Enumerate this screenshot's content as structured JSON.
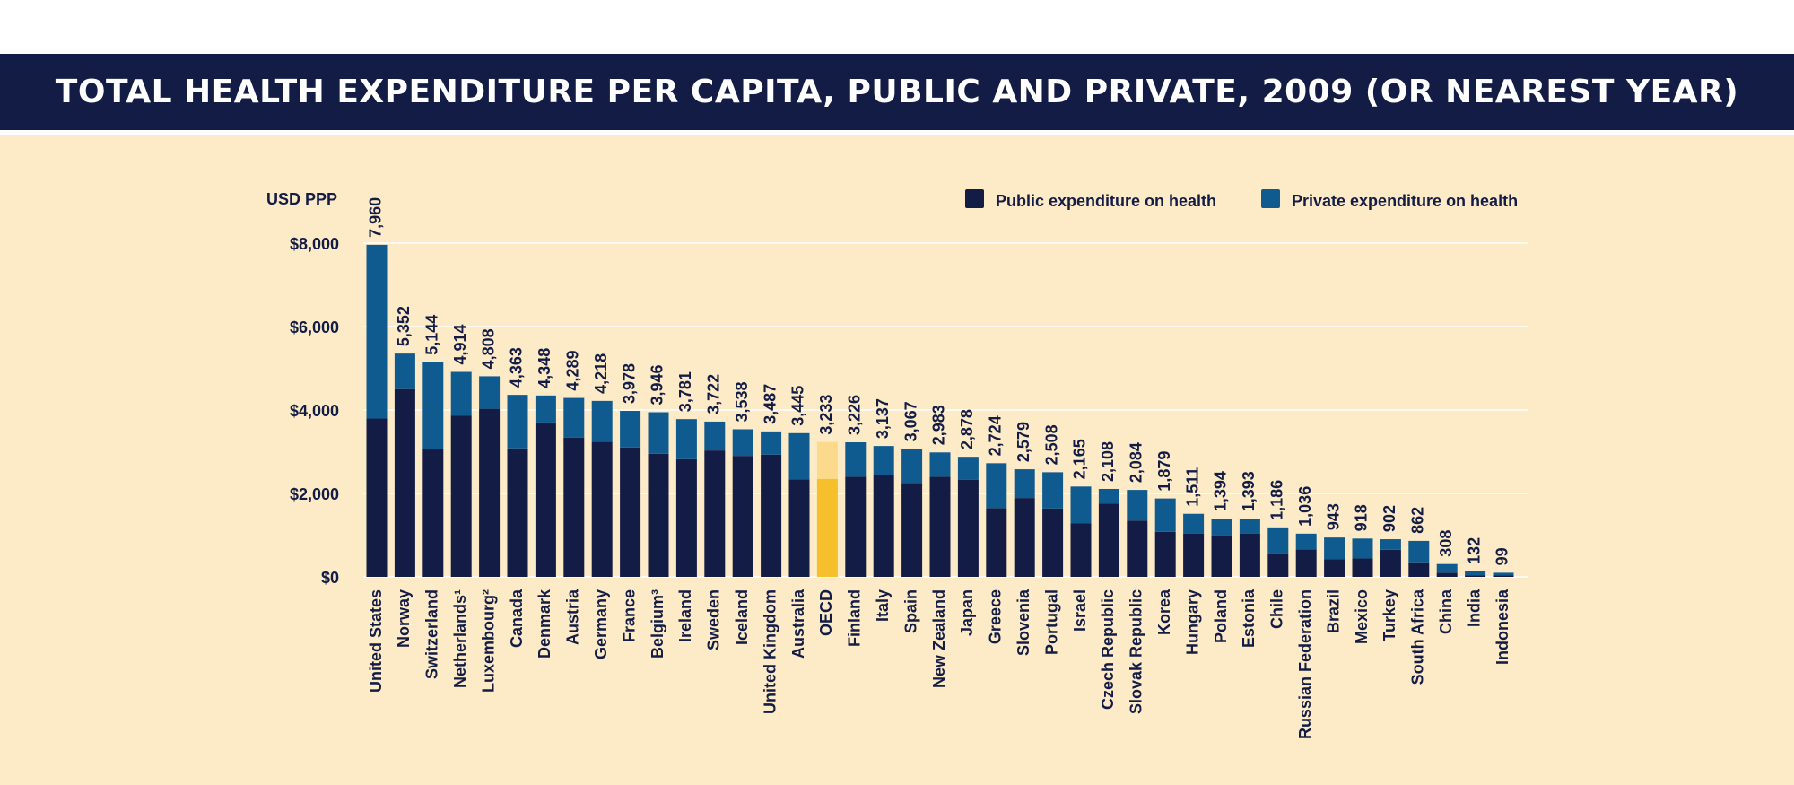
{
  "title": "Total health expenditure per capita, public and private, 2009 (or nearest year)",
  "colors": {
    "title_bg": "#131c45",
    "background": "#fdebc8",
    "public": "#131c45",
    "private": "#0f5b8f",
    "oecd_public": "#f6c02c",
    "oecd_private": "#fbda8b",
    "text": "#131c45"
  },
  "chart_data": {
    "type": "bar",
    "stacked": true,
    "ylabel": "USD PPP",
    "ylim": [
      0,
      8000
    ],
    "yticks": [
      0,
      2000,
      4000,
      6000,
      8000
    ],
    "ytick_labels": [
      "$0",
      "$2,000",
      "$4,000",
      "$6,000",
      "$8,000"
    ],
    "grid": true,
    "legend_placement": "top-right",
    "categories": [
      "United States",
      "Norway",
      "Switzerland",
      "Netherlands¹",
      "Luxembourg²",
      "Canada",
      "Denmark",
      "Austria",
      "Germany",
      "France",
      "Belgium³",
      "Ireland",
      "Sweden",
      "Iceland",
      "United Kingdom",
      "Australia",
      "OECD",
      "Finland",
      "Italy",
      "Spain",
      "New Zealand",
      "Japan",
      "Greece",
      "Slovenia",
      "Portugal",
      "Israel",
      "Czech Republic",
      "Slovak Republic",
      "Korea",
      "Hungary",
      "Poland",
      "Estonia",
      "Chile",
      "Russian Federation",
      "Brazil",
      "Mexico",
      "Turkey",
      "South Africa",
      "China",
      "India",
      "Indonesia"
    ],
    "highlight_category": "OECD",
    "totals": [
      7960,
      5352,
      5144,
      4914,
      4808,
      4363,
      4348,
      4289,
      4218,
      3978,
      3946,
      3781,
      3722,
      3538,
      3487,
      3445,
      3233,
      3226,
      3137,
      3067,
      2983,
      2878,
      2724,
      2579,
      2508,
      2165,
      2108,
      2084,
      1879,
      1511,
      1394,
      1393,
      1186,
      1036,
      943,
      918,
      902,
      862,
      308,
      132,
      99
    ],
    "total_labels": [
      "7,960",
      "5,352",
      "5,144",
      "4,914",
      "4,808",
      "4,363",
      "4,348",
      "4,289",
      "4,218",
      "3,978",
      "3,946",
      "3,781",
      "3,722",
      "3,538",
      "3,487",
      "3,445",
      "3,233",
      "3,226",
      "3,137",
      "3,067",
      "2,983",
      "2,878",
      "2,724",
      "2,579",
      "2,508",
      "2,165",
      "2,108",
      "2,084",
      "1,879",
      "1,511",
      "1,394",
      "1,393",
      "1,186",
      "1,036",
      "943",
      "918",
      "902",
      "862",
      "308",
      "132",
      "99"
    ],
    "series": [
      {
        "name": "Public expenditure on health",
        "values": [
          3795,
          4501,
          3072,
          3860,
          4030,
          3080,
          3700,
          3340,
          3240,
          3100,
          2950,
          2820,
          3030,
          2900,
          2930,
          2340,
          2350,
          2400,
          2430,
          2250,
          2400,
          2330,
          1650,
          1890,
          1640,
          1280,
          1760,
          1350,
          1080,
          1040,
          990,
          1040,
          560,
          660,
          420,
          440,
          650,
          350,
          100,
          40,
          40
        ]
      },
      {
        "name": "Private expenditure on health",
        "values": [
          4165,
          851,
          2072,
          1054,
          778,
          1283,
          648,
          949,
          978,
          878,
          996,
          961,
          692,
          638,
          557,
          1105,
          883,
          826,
          707,
          817,
          583,
          548,
          1074,
          689,
          868,
          885,
          348,
          734,
          799,
          471,
          404,
          353,
          626,
          376,
          523,
          478,
          252,
          512,
          208,
          92,
          59
        ]
      }
    ]
  }
}
